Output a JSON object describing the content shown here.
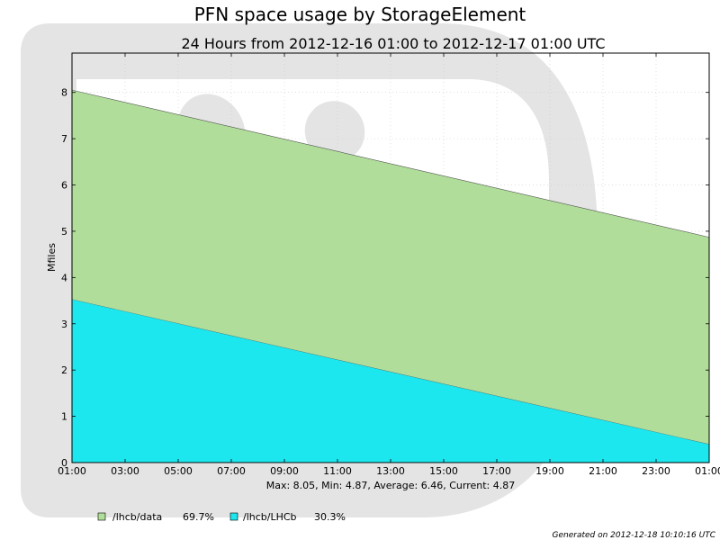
{
  "chart_data": {
    "type": "area",
    "stacked": true,
    "title": "PFN space usage by StorageElement",
    "subtitle": "24 Hours from 2012-12-16 01:00 to 2012-12-17 01:00 UTC",
    "ylabel": "Mfiles",
    "xlabel": "",
    "x": [
      "01:00",
      "01:00"
    ],
    "x_start": "2012-12-16 01:00",
    "x_end": "2012-12-17 01:00",
    "x_ticks": [
      "01:00",
      "03:00",
      "05:00",
      "07:00",
      "09:00",
      "11:00",
      "13:00",
      "15:00",
      "17:00",
      "19:00",
      "21:00",
      "23:00",
      "01:00"
    ],
    "ylim": [
      0,
      8.85
    ],
    "y_ticks": [
      0,
      1,
      2,
      3,
      4,
      5,
      6,
      7,
      8
    ],
    "grid": true,
    "series": [
      {
        "name": "/lhcb/LHCb",
        "values": [
          3.53,
          0.4
        ],
        "color": "#1ce6ee",
        "percent": "30.3%"
      },
      {
        "name": "/lhcb/data",
        "values": [
          4.52,
          4.47
        ],
        "color": "#b0de9a",
        "percent": "69.7%"
      }
    ],
    "stats": "Max: 8.05, Min: 4.87, Average: 6.46, Current: 4.87",
    "legend_order": [
      "/lhcb/data",
      "/lhcb/LHCb"
    ],
    "legend_position": "bottom-left"
  },
  "footer": {
    "generated": "Generated on 2012-12-18 10:10:16 UTC"
  }
}
